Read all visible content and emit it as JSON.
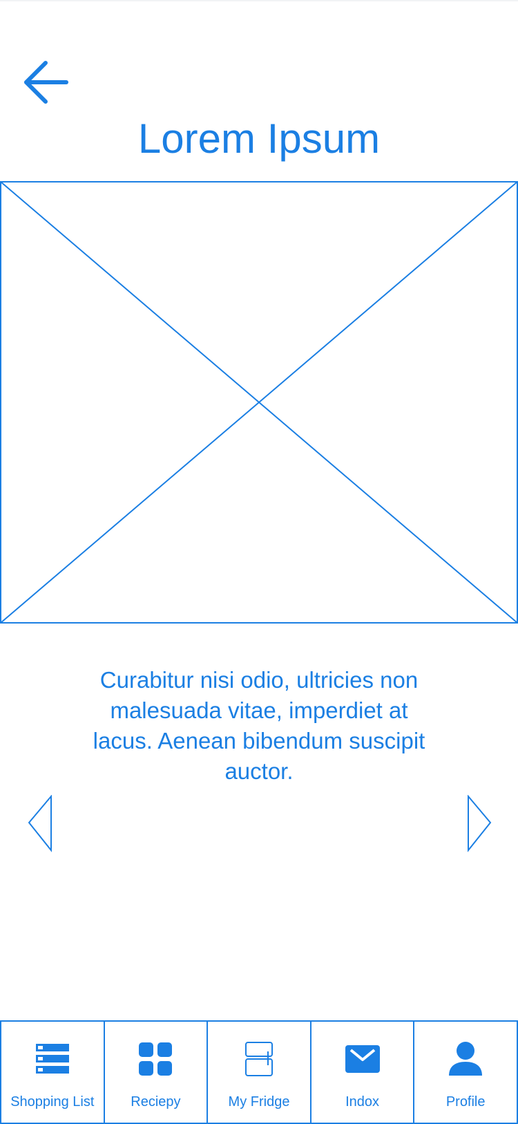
{
  "header": {
    "title": "Lorem Ipsum",
    "back_icon": "arrow-left-icon"
  },
  "main": {
    "image_placeholder": "image-placeholder",
    "description": "Curabitur nisi odio, ultricies non malesuada vitae, imperdiet at lacus. Aenean bibendum suscipit auctor.",
    "prev_icon": "chevron-left-icon",
    "next_icon": "chevron-right-icon"
  },
  "bottom_nav": {
    "items": [
      {
        "label": "Shopping List",
        "icon": "list-icon"
      },
      {
        "label": "Reciepy",
        "icon": "grid-icon"
      },
      {
        "label": "My Fridge",
        "icon": "fridge-icon"
      },
      {
        "label": "Indox",
        "icon": "mail-icon"
      },
      {
        "label": "Profile",
        "icon": "user-icon"
      }
    ]
  },
  "colors": {
    "accent": "#1b7fe3",
    "background": "#ffffff"
  }
}
